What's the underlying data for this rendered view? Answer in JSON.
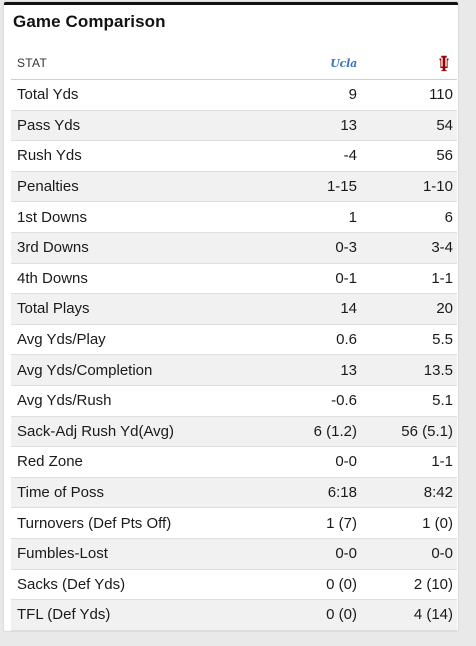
{
  "title": "Game Comparison",
  "header": {
    "stat_label": "STAT",
    "team_a_logo_text": "Ucla",
    "team_a_logo_icon": "ucla-logo-icon",
    "team_b_logo_icon": "indiana-logo-icon",
    "team_a_color": "#3a78c3",
    "team_b_color": "#990000"
  },
  "rows": [
    {
      "stat": "Total Yds",
      "a": "9",
      "b": "110"
    },
    {
      "stat": "Pass Yds",
      "a": "13",
      "b": "54"
    },
    {
      "stat": "Rush Yds",
      "a": "-4",
      "b": "56"
    },
    {
      "stat": "Penalties",
      "a": "1-15",
      "b": "1-10"
    },
    {
      "stat": "1st Downs",
      "a": "1",
      "b": "6"
    },
    {
      "stat": "3rd Downs",
      "a": "0-3",
      "b": "3-4"
    },
    {
      "stat": "4th Downs",
      "a": "0-1",
      "b": "1-1"
    },
    {
      "stat": "Total Plays",
      "a": "14",
      "b": "20"
    },
    {
      "stat": "Avg Yds/Play",
      "a": "0.6",
      "b": "5.5"
    },
    {
      "stat": "Avg Yds/Completion",
      "a": "13",
      "b": "13.5"
    },
    {
      "stat": "Avg Yds/Rush",
      "a": "-0.6",
      "b": "5.1"
    },
    {
      "stat": "Sack-Adj Rush Yd(Avg)",
      "a": "6 (1.2)",
      "b": "56 (5.1)"
    },
    {
      "stat": "Red Zone",
      "a": "0-0",
      "b": "1-1"
    },
    {
      "stat": "Time of Poss",
      "a": "6:18",
      "b": "8:42"
    },
    {
      "stat": "Turnovers (Def Pts Off)",
      "a": "1 (7)",
      "b": "1 (0)"
    },
    {
      "stat": "Fumbles-Lost",
      "a": "0-0",
      "b": "0-0"
    },
    {
      "stat": "Sacks (Def Yds)",
      "a": "0 (0)",
      "b": "2 (10)"
    },
    {
      "stat": "TFL (Def Yds)",
      "a": "0 (0)",
      "b": "4 (14)"
    }
  ]
}
